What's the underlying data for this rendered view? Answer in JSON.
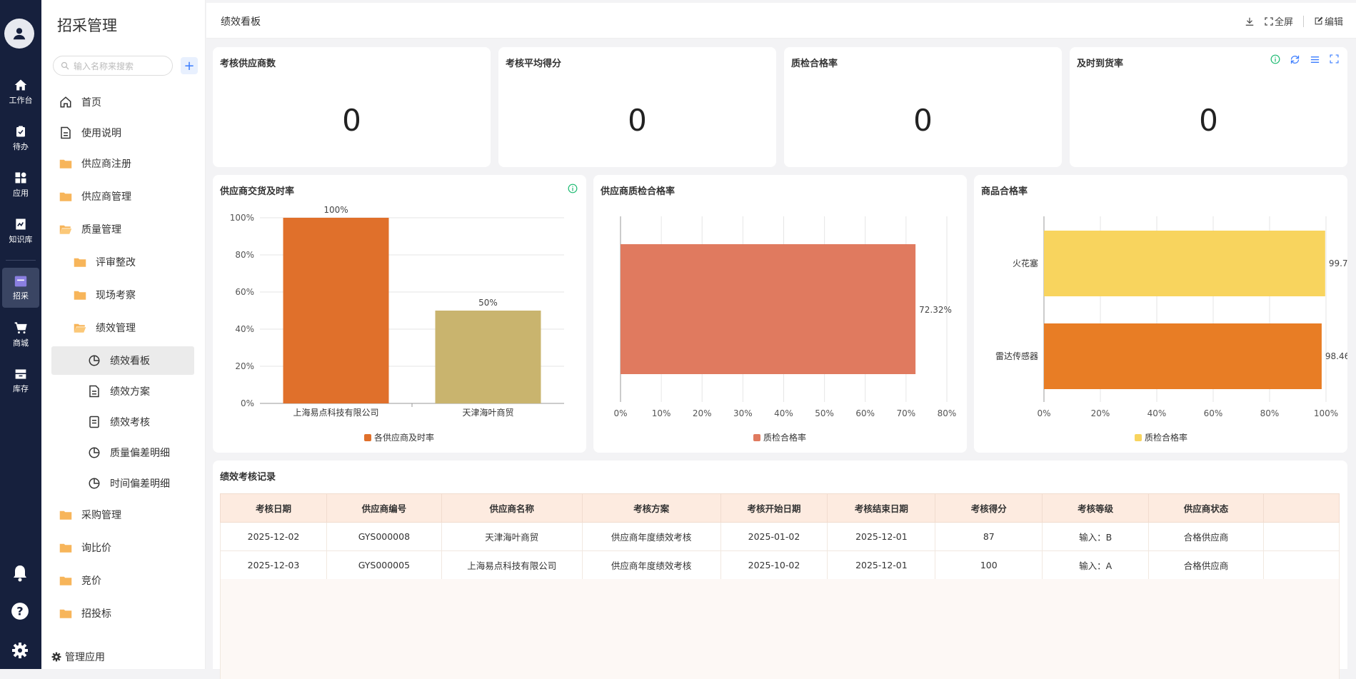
{
  "rail": {
    "items": [
      {
        "label": "工作台",
        "icon": "home-icon"
      },
      {
        "label": "待办",
        "icon": "clipboard-icon"
      },
      {
        "label": "应用",
        "icon": "apps-icon"
      },
      {
        "label": "知识库",
        "icon": "book-icon"
      },
      {
        "label": "招采",
        "icon": "procurement-icon"
      },
      {
        "label": "商城",
        "icon": "cart-icon"
      },
      {
        "label": "库存",
        "icon": "inventory-icon"
      }
    ]
  },
  "sidebar": {
    "title": "招采管理",
    "search_placeholder": "输入名称来搜索",
    "items": [
      {
        "label": "首页"
      },
      {
        "label": "使用说明"
      },
      {
        "label": "供应商注册"
      },
      {
        "label": "供应商管理"
      },
      {
        "label": "质量管理"
      },
      {
        "label": "评审整改"
      },
      {
        "label": "现场考察"
      },
      {
        "label": "绩效管理"
      },
      {
        "label": "绩效看板"
      },
      {
        "label": "绩效方案"
      },
      {
        "label": "绩效考核"
      },
      {
        "label": "质量偏差明细"
      },
      {
        "label": "时间偏差明细"
      },
      {
        "label": "采购管理"
      },
      {
        "label": "询比价"
      },
      {
        "label": "竞价"
      },
      {
        "label": "招投标"
      }
    ],
    "manage_label": "管理应用"
  },
  "topbar": {
    "title": "绩效看板",
    "fullscreen": "全屏",
    "edit": "编辑"
  },
  "kpis": [
    {
      "title": "考核供应商数",
      "value": "0"
    },
    {
      "title": "考核平均得分",
      "value": "0"
    },
    {
      "title": "质检合格率",
      "value": "0"
    },
    {
      "title": "及时到货率",
      "value": "0"
    }
  ],
  "charts": {
    "delivery": {
      "title": "供应商交货及时率"
    },
    "quality": {
      "title": "供应商质检合格率"
    },
    "product": {
      "title": "商品合格率"
    }
  },
  "chart_data": [
    {
      "type": "bar",
      "title": "供应商交货及时率",
      "categories": [
        "上海易点科技有限公司",
        "天津海叶商贸"
      ],
      "series": [
        {
          "name": "各供应商及时率",
          "values": [
            100,
            50
          ]
        }
      ],
      "data_labels": [
        "100%",
        "50%"
      ],
      "colors": [
        "#e0702b",
        "#c9b46e"
      ],
      "ylim": [
        0,
        100
      ],
      "yticks": [
        "0%",
        "20%",
        "40%",
        "60%",
        "80%",
        "100%"
      ],
      "legend": "bottom"
    },
    {
      "type": "bar",
      "orientation": "horizontal",
      "title": "供应商质检合格率",
      "categories": [
        ""
      ],
      "series": [
        {
          "name": "质检合格率",
          "values": [
            72.32
          ]
        }
      ],
      "data_labels": [
        "72.32%"
      ],
      "colors": [
        "#e07a5f"
      ],
      "xlim": [
        0,
        80
      ],
      "xticks": [
        "0%",
        "10%",
        "20%",
        "30%",
        "40%",
        "50%",
        "60%",
        "70%",
        "80%"
      ],
      "legend": "bottom"
    },
    {
      "type": "bar",
      "orientation": "horizontal",
      "title": "商品合格率",
      "categories": [
        "火花塞",
        "雷达传感器"
      ],
      "series": [
        {
          "name": "质检合格率",
          "values": [
            99.7,
            98.46
          ]
        }
      ],
      "data_labels": [
        "99.7",
        "98.46"
      ],
      "colors": [
        "#f8d45e",
        "#e87d25"
      ],
      "xlim": [
        0,
        100
      ],
      "xticks": [
        "0%",
        "20%",
        "40%",
        "60%",
        "80%",
        "100%"
      ],
      "legend": "bottom"
    }
  ],
  "records": {
    "title": "绩效考核记录",
    "columns": [
      "考核日期",
      "供应商编号",
      "供应商名称",
      "考核方案",
      "考核开始日期",
      "考核结束日期",
      "考核得分",
      "考核等级",
      "供应商状态"
    ],
    "rows": [
      [
        "2025-12-02",
        "GYS000008",
        "天津海叶商贸",
        "供应商年度绩效考核",
        "2025-01-02",
        "2025-12-01",
        "87",
        "输入：B",
        "合格供应商"
      ],
      [
        "2025-12-03",
        "GYS000005",
        "上海易点科技有限公司",
        "供应商年度绩效考核",
        "2025-10-02",
        "2025-12-01",
        "100",
        "输入：A",
        "合格供应商"
      ]
    ]
  }
}
